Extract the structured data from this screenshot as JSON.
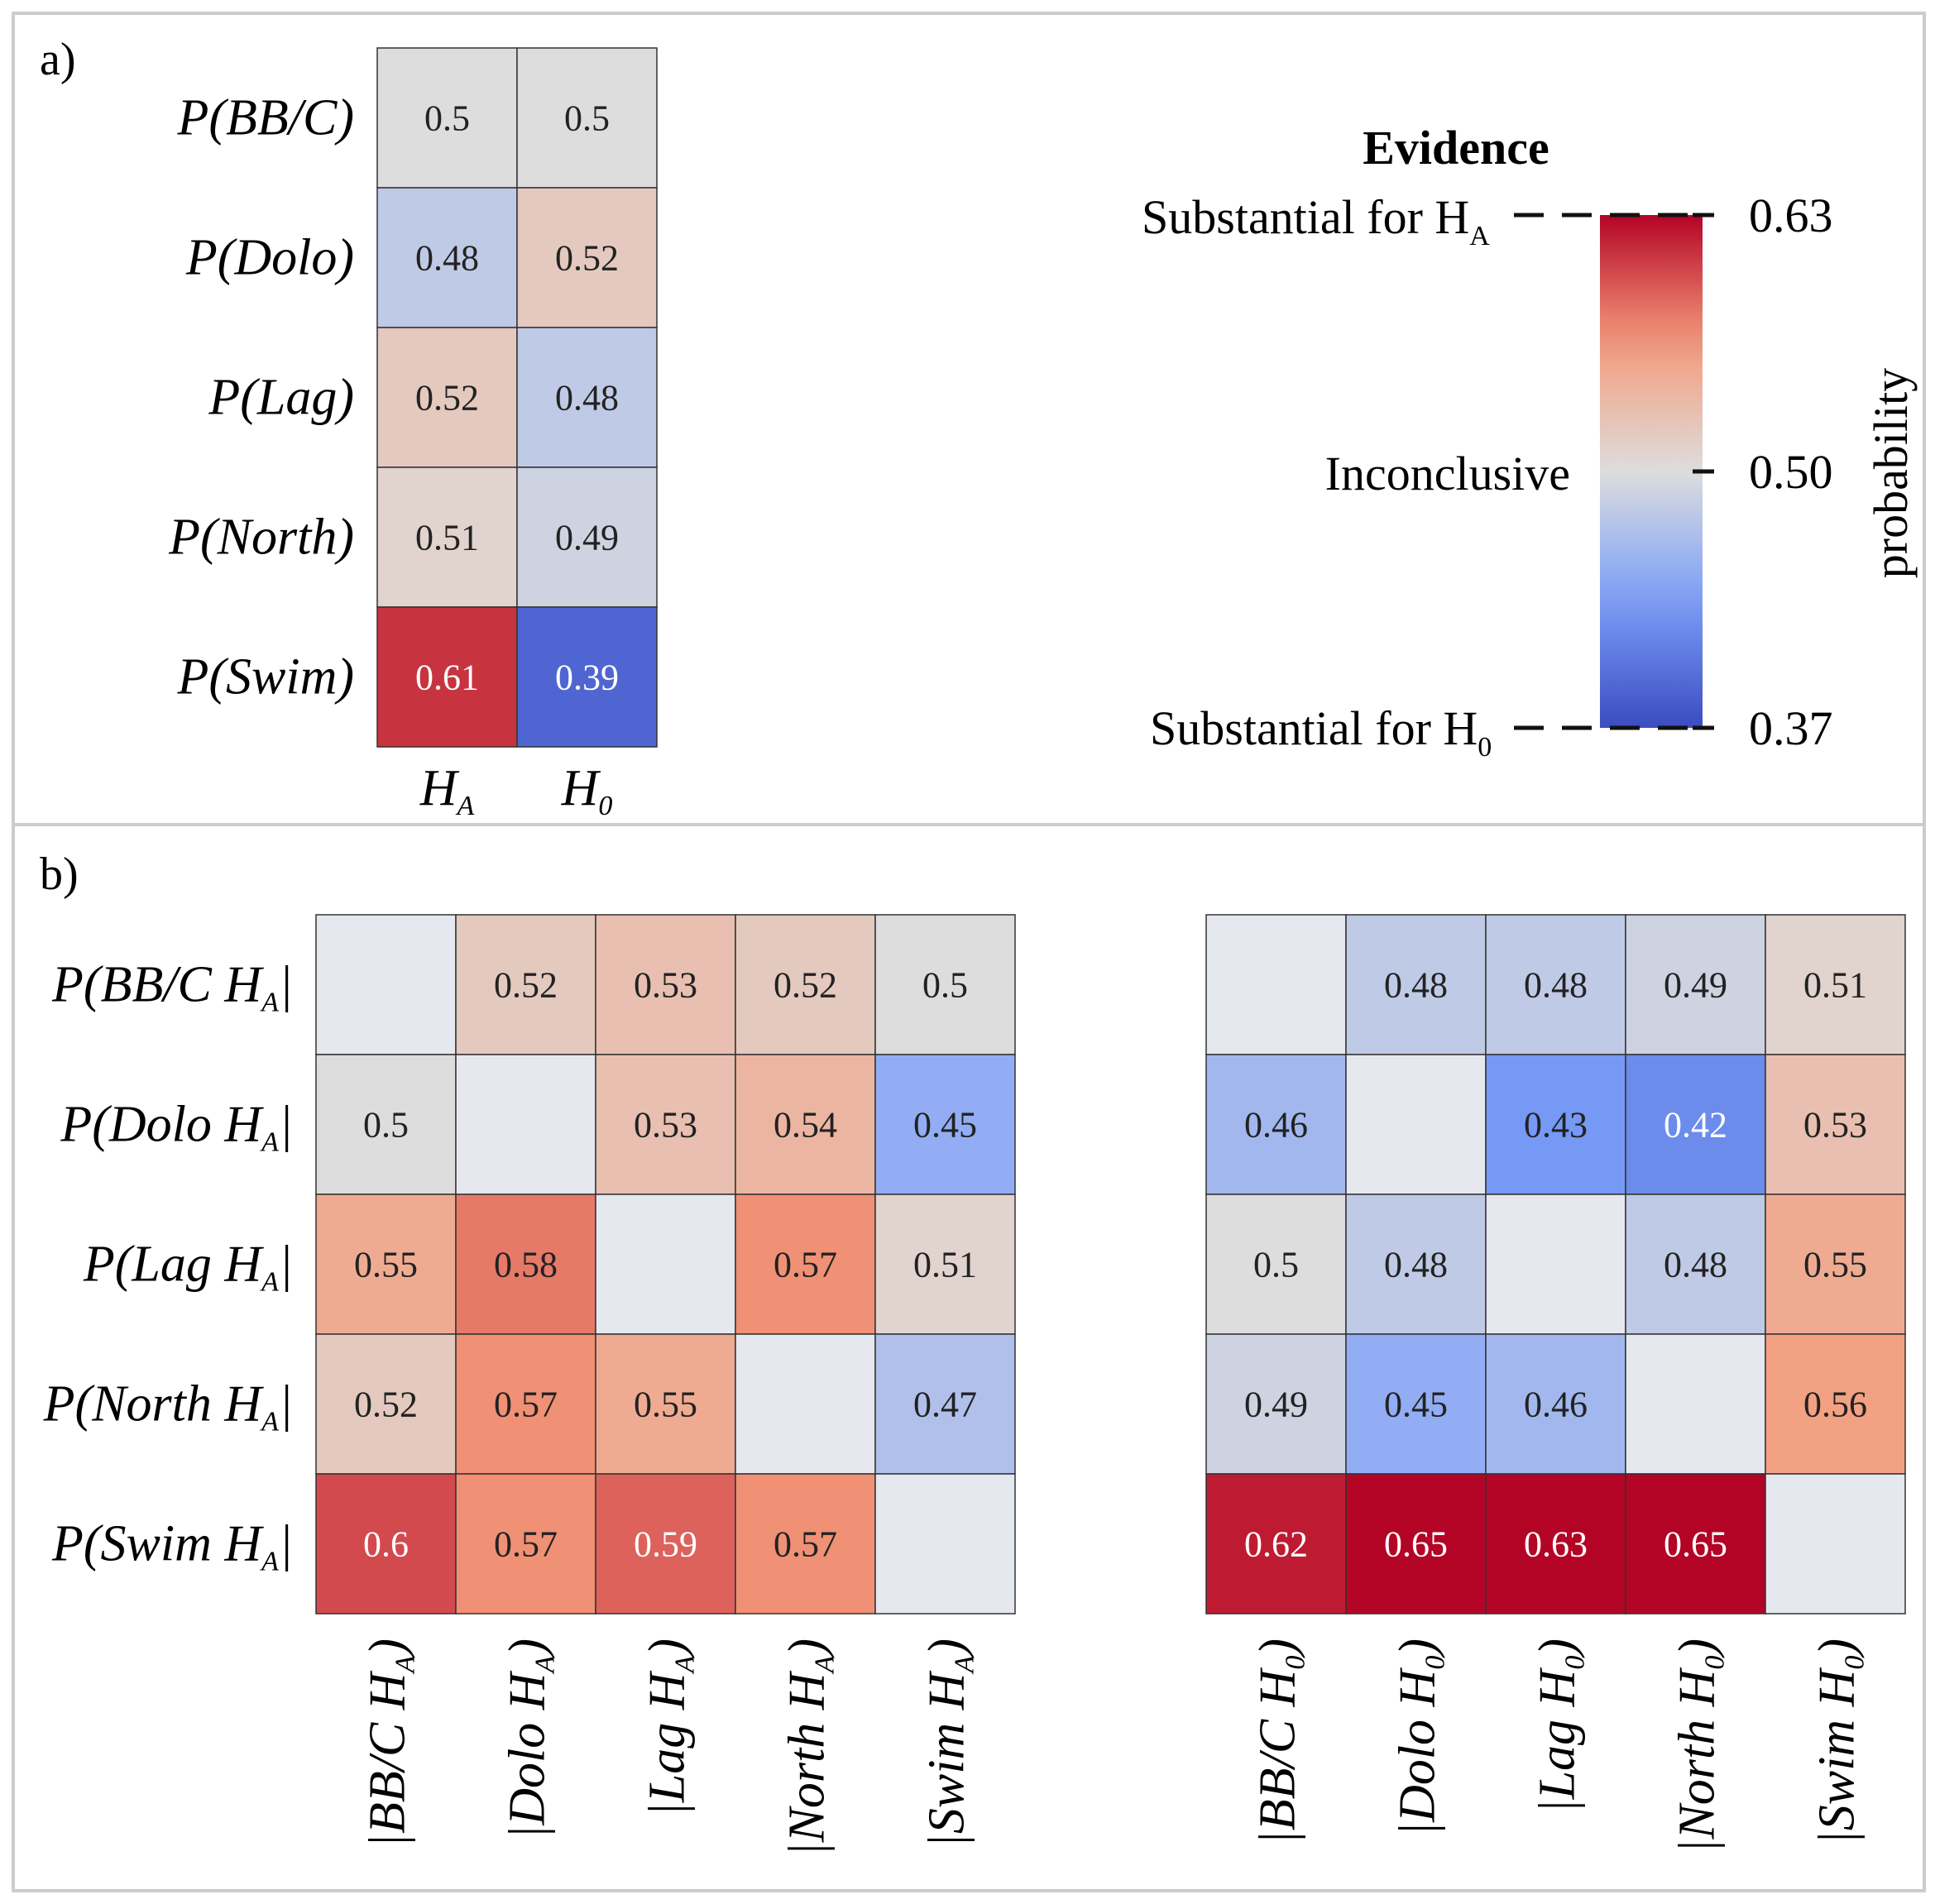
{
  "chart_data": [
    {
      "type": "heatmap",
      "panel_label": "a)",
      "rows": [
        "P(BB/C)",
        "P(Dolo)",
        "P(Lag)",
        "P(North)",
        "P(Swim)"
      ],
      "columns": [
        {
          "base": "H",
          "sub": "A"
        },
        {
          "base": "H",
          "sub": "0"
        }
      ],
      "values": [
        [
          0.5,
          0.5
        ],
        [
          0.48,
          0.52
        ],
        [
          0.52,
          0.48
        ],
        [
          0.51,
          0.49
        ],
        [
          0.61,
          0.39
        ]
      ],
      "value_labels": [
        [
          "0.5",
          "0.5"
        ],
        [
          "0.48",
          "0.52"
        ],
        [
          "0.52",
          "0.48"
        ],
        [
          "0.51",
          "0.49"
        ],
        [
          "0.61",
          "0.39"
        ]
      ]
    },
    {
      "type": "heatmap",
      "panel_label": "b)",
      "rows": [
        {
          "prefix": "P(BB/C H",
          "sub": "A",
          "suffix": "|"
        },
        {
          "prefix": "P(Dolo H",
          "sub": "A",
          "suffix": "|"
        },
        {
          "prefix": "P(Lag H",
          "sub": "A",
          "suffix": "|"
        },
        {
          "prefix": "P(North H",
          "sub": "A",
          "suffix": "|"
        },
        {
          "prefix": "P(Swim H",
          "sub": "A",
          "suffix": "|"
        }
      ],
      "columns": [
        {
          "prefix": "|BB/C H",
          "sub": "A",
          "suffix": ")"
        },
        {
          "prefix": "|Dolo H",
          "sub": "A",
          "suffix": ")"
        },
        {
          "prefix": "|Lag H",
          "sub": "A",
          "suffix": ")"
        },
        {
          "prefix": "|North H",
          "sub": "A",
          "suffix": ")"
        },
        {
          "prefix": "|Swim H",
          "sub": "A",
          "suffix": ")"
        }
      ],
      "values": [
        [
          null,
          0.52,
          0.53,
          0.52,
          0.5
        ],
        [
          0.5,
          null,
          0.53,
          0.54,
          0.45
        ],
        [
          0.55,
          0.58,
          null,
          0.57,
          0.51
        ],
        [
          0.52,
          0.57,
          0.55,
          null,
          0.47
        ],
        [
          0.6,
          0.57,
          0.59,
          0.57,
          null
        ]
      ],
      "value_labels": [
        [
          "",
          "0.52",
          "0.53",
          "0.52",
          "0.5"
        ],
        [
          "0.5",
          "",
          "0.53",
          "0.54",
          "0.45"
        ],
        [
          "0.55",
          "0.58",
          "",
          "0.57",
          "0.51"
        ],
        [
          "0.52",
          "0.57",
          "0.55",
          "",
          "0.47"
        ],
        [
          "0.6",
          "0.57",
          "0.59",
          "0.57",
          ""
        ]
      ]
    },
    {
      "type": "heatmap",
      "rows": [],
      "columns": [
        {
          "prefix": "|BB/C H",
          "sub": "0",
          "suffix": ")"
        },
        {
          "prefix": "|Dolo H",
          "sub": "0",
          "suffix": ")"
        },
        {
          "prefix": "|Lag H",
          "sub": "0",
          "suffix": ")"
        },
        {
          "prefix": "|North H",
          "sub": "0",
          "suffix": ")"
        },
        {
          "prefix": "|Swim H",
          "sub": "0",
          "suffix": ")"
        }
      ],
      "values": [
        [
          null,
          0.48,
          0.48,
          0.49,
          0.51
        ],
        [
          0.46,
          null,
          0.43,
          0.42,
          0.53
        ],
        [
          0.5,
          0.48,
          null,
          0.48,
          0.55
        ],
        [
          0.49,
          0.45,
          0.46,
          null,
          0.56
        ],
        [
          0.62,
          0.65,
          0.63,
          0.65,
          null
        ]
      ],
      "value_labels": [
        [
          "",
          "0.48",
          "0.48",
          "0.49",
          "0.51"
        ],
        [
          "0.46",
          "",
          "0.43",
          "0.42",
          "0.53"
        ],
        [
          "0.5",
          "0.48",
          "",
          "0.48",
          "0.55"
        ],
        [
          "0.49",
          "0.45",
          "0.46",
          "",
          "0.56"
        ],
        [
          "0.62",
          "0.65",
          "0.63",
          "0.65",
          ""
        ]
      ]
    }
  ],
  "colorbar": {
    "title": "Evidence",
    "axis_label": "probability",
    "vmin": 0.37,
    "vmax": 0.63,
    "tick_values": [
      0.63,
      0.5,
      0.37
    ],
    "tick_labels": [
      "0.63",
      "0.50",
      "0.37"
    ],
    "top_annotation": {
      "prefix": "Substantial for H",
      "sub": "A"
    },
    "middle_annotation": "Inconclusive",
    "bottom_annotation": {
      "prefix": "Substantial for H",
      "sub": "0"
    }
  },
  "colors": {
    "cmap_low": "#3b4cc0",
    "cmap_mid": "#dddddd",
    "cmap_high": "#b40426",
    "diagonal": "#e6e8f0",
    "frame": "#cccccc",
    "grid": "#333333"
  }
}
